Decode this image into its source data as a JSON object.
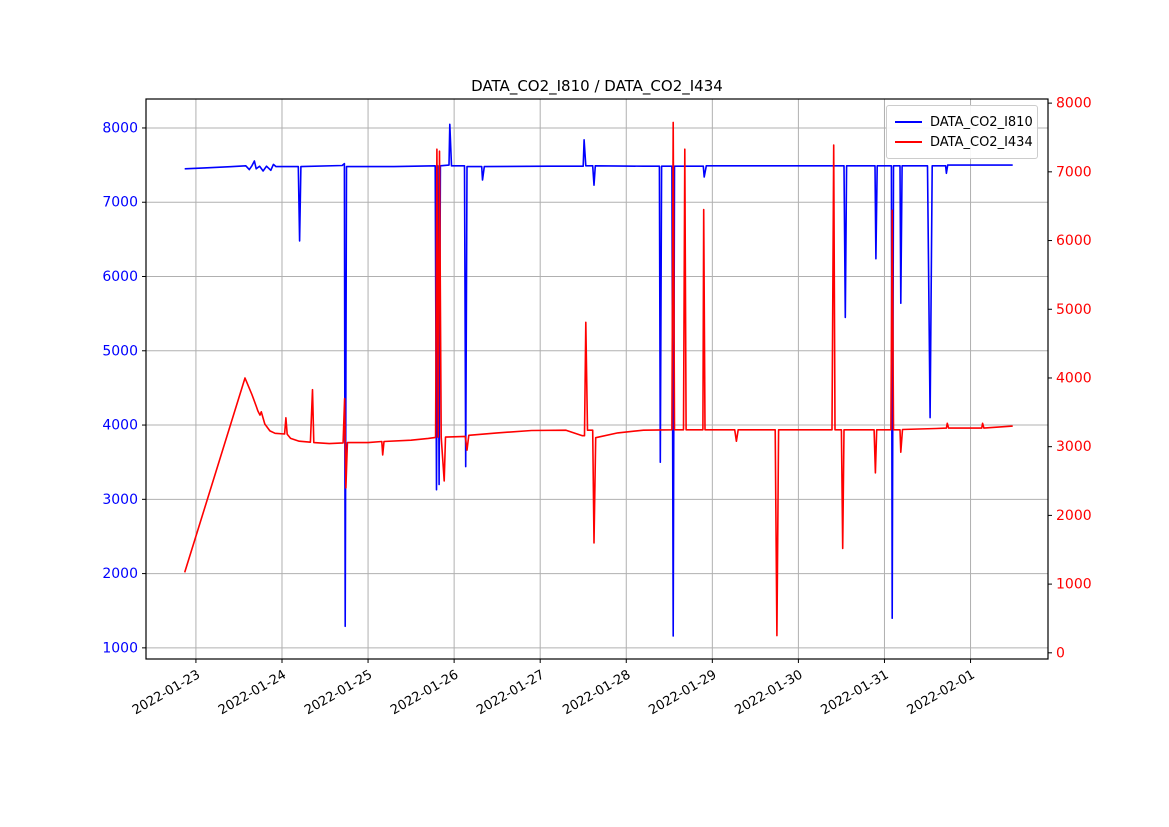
{
  "chart_data": {
    "type": "line",
    "title": "DATA_CO2_I810 / DATA_CO2_I434",
    "grid": true,
    "grid_color": "#b0b0b0",
    "background": "#ffffff",
    "legend_position": "top-right",
    "x_unit": "days since 2022-01-23 00:00",
    "x_range": [
      -0.58,
      9.9
    ],
    "x_ticks": [
      0,
      1,
      2,
      3,
      4,
      5,
      6,
      7,
      8,
      9
    ],
    "x_tick_labels": [
      "2022-01-23",
      "2022-01-24",
      "2022-01-25",
      "2022-01-26",
      "2022-01-27",
      "2022-01-28",
      "2022-01-29",
      "2022-01-30",
      "2022-01-31",
      "2022-02-01"
    ],
    "left_axis": {
      "color": "#0000ff",
      "range": [
        850,
        8390
      ],
      "ticks": [
        1000,
        2000,
        3000,
        4000,
        5000,
        6000,
        7000,
        8000
      ]
    },
    "right_axis": {
      "color": "#ff0000",
      "range": [
        -90,
        8060
      ],
      "ticks": [
        0,
        1000,
        2000,
        3000,
        4000,
        5000,
        6000,
        7000,
        8000
      ]
    },
    "series": [
      {
        "name": "DATA_CO2_I810",
        "color": "#0000ff",
        "axis": "left",
        "points": [
          [
            -0.13,
            7450
          ],
          [
            0.1,
            7462
          ],
          [
            0.4,
            7478
          ],
          [
            0.58,
            7490
          ],
          [
            0.62,
            7440
          ],
          [
            0.65,
            7490
          ],
          [
            0.68,
            7555
          ],
          [
            0.7,
            7450
          ],
          [
            0.74,
            7485
          ],
          [
            0.78,
            7420
          ],
          [
            0.82,
            7485
          ],
          [
            0.87,
            7430
          ],
          [
            0.9,
            7510
          ],
          [
            0.93,
            7480
          ],
          [
            1.19,
            7480
          ],
          [
            1.205,
            6480
          ],
          [
            1.22,
            7480
          ],
          [
            1.7,
            7495
          ],
          [
            1.725,
            7520
          ],
          [
            1.735,
            1290
          ],
          [
            1.75,
            7480
          ],
          [
            2.3,
            7480
          ],
          [
            2.78,
            7490
          ],
          [
            2.795,
            3130
          ],
          [
            2.81,
            7490
          ],
          [
            2.825,
            3200
          ],
          [
            2.84,
            7490
          ],
          [
            2.94,
            7500
          ],
          [
            2.95,
            8050
          ],
          [
            2.97,
            7490
          ],
          [
            3.12,
            7490
          ],
          [
            3.135,
            3440
          ],
          [
            3.15,
            7480
          ],
          [
            3.32,
            7480
          ],
          [
            3.33,
            7300
          ],
          [
            3.35,
            7480
          ],
          [
            4.1,
            7485
          ],
          [
            4.5,
            7485
          ],
          [
            4.51,
            7840
          ],
          [
            4.53,
            7490
          ],
          [
            4.61,
            7490
          ],
          [
            4.625,
            7230
          ],
          [
            4.64,
            7490
          ],
          [
            5.2,
            7485
          ],
          [
            5.385,
            7485
          ],
          [
            5.395,
            3500
          ],
          [
            5.41,
            7485
          ],
          [
            5.53,
            7485
          ],
          [
            5.545,
            1160
          ],
          [
            5.56,
            7485
          ],
          [
            5.895,
            7485
          ],
          [
            5.905,
            7340
          ],
          [
            5.93,
            7490
          ],
          [
            6.5,
            7490
          ],
          [
            7.53,
            7490
          ],
          [
            7.545,
            5450
          ],
          [
            7.56,
            7490
          ],
          [
            7.89,
            7490
          ],
          [
            7.9,
            6240
          ],
          [
            7.915,
            7490
          ],
          [
            8.08,
            7490
          ],
          [
            8.09,
            1400
          ],
          [
            8.105,
            7490
          ],
          [
            8.18,
            7490
          ],
          [
            8.19,
            5640
          ],
          [
            8.205,
            7490
          ],
          [
            8.5,
            7490
          ],
          [
            8.53,
            4100
          ],
          [
            8.555,
            7490
          ],
          [
            8.71,
            7490
          ],
          [
            8.72,
            7390
          ],
          [
            8.735,
            7500
          ],
          [
            9.0,
            7500
          ],
          [
            9.49,
            7500
          ]
        ]
      },
      {
        "name": "DATA_CO2_I434",
        "color": "#ff0000",
        "axis": "right",
        "points": [
          [
            -0.13,
            1170
          ],
          [
            0.57,
            4000
          ],
          [
            0.65,
            3760
          ],
          [
            0.7,
            3590
          ],
          [
            0.72,
            3520
          ],
          [
            0.745,
            3460
          ],
          [
            0.76,
            3508
          ],
          [
            0.8,
            3330
          ],
          [
            0.86,
            3230
          ],
          [
            0.92,
            3195
          ],
          [
            1.03,
            3185
          ],
          [
            1.045,
            3420
          ],
          [
            1.06,
            3180
          ],
          [
            1.1,
            3120
          ],
          [
            1.2,
            3080
          ],
          [
            1.33,
            3065
          ],
          [
            1.355,
            3830
          ],
          [
            1.37,
            3060
          ],
          [
            1.55,
            3045
          ],
          [
            1.71,
            3055
          ],
          [
            1.728,
            3700
          ],
          [
            1.742,
            2400
          ],
          [
            1.76,
            3060
          ],
          [
            2.0,
            3060
          ],
          [
            2.16,
            3075
          ],
          [
            2.17,
            2880
          ],
          [
            2.185,
            3075
          ],
          [
            2.5,
            3095
          ],
          [
            2.7,
            3120
          ],
          [
            2.785,
            3135
          ],
          [
            2.8,
            7330
          ],
          [
            2.815,
            3140
          ],
          [
            2.83,
            7300
          ],
          [
            2.85,
            3140
          ],
          [
            2.885,
            2500
          ],
          [
            2.9,
            3140
          ],
          [
            3.13,
            3150
          ],
          [
            3.15,
            2950
          ],
          [
            3.17,
            3165
          ],
          [
            3.5,
            3200
          ],
          [
            3.9,
            3235
          ],
          [
            4.3,
            3240
          ],
          [
            4.49,
            3160
          ],
          [
            4.515,
            3160
          ],
          [
            4.53,
            4810
          ],
          [
            4.55,
            3240
          ],
          [
            4.61,
            3240
          ],
          [
            4.625,
            1600
          ],
          [
            4.645,
            3130
          ],
          [
            4.9,
            3200
          ],
          [
            5.2,
            3240
          ],
          [
            5.53,
            3245
          ],
          [
            5.545,
            7720
          ],
          [
            5.56,
            3245
          ],
          [
            5.665,
            3245
          ],
          [
            5.68,
            7330
          ],
          [
            5.695,
            3245
          ],
          [
            5.89,
            3245
          ],
          [
            5.9,
            6450
          ],
          [
            5.915,
            3245
          ],
          [
            6.26,
            3245
          ],
          [
            6.28,
            3080
          ],
          [
            6.3,
            3245
          ],
          [
            6.73,
            3245
          ],
          [
            6.75,
            250
          ],
          [
            6.77,
            3245
          ],
          [
            7.39,
            3245
          ],
          [
            7.41,
            7390
          ],
          [
            7.425,
            3245
          ],
          [
            7.5,
            3245
          ],
          [
            7.515,
            1520
          ],
          [
            7.53,
            3245
          ],
          [
            7.88,
            3245
          ],
          [
            7.895,
            2620
          ],
          [
            7.91,
            3245
          ],
          [
            8.075,
            3245
          ],
          [
            8.09,
            6440
          ],
          [
            8.105,
            3245
          ],
          [
            8.18,
            3245
          ],
          [
            8.19,
            2920
          ],
          [
            8.21,
            3250
          ],
          [
            8.6,
            3265
          ],
          [
            8.72,
            3270
          ],
          [
            8.73,
            3340
          ],
          [
            8.745,
            3270
          ],
          [
            9.13,
            3270
          ],
          [
            9.14,
            3340
          ],
          [
            9.155,
            3270
          ],
          [
            9.49,
            3300
          ]
        ]
      }
    ]
  }
}
